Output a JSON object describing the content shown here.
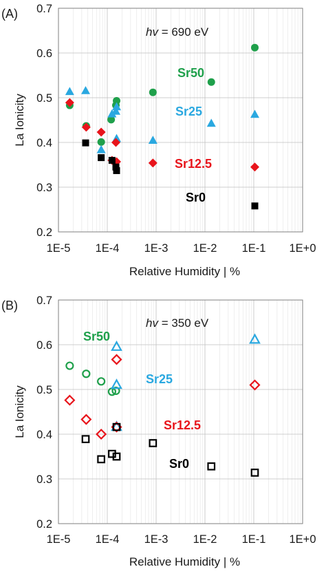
{
  "colors": {
    "Sr0": "#000000",
    "Sr12.5": "#e8141b",
    "Sr25": "#2aa8e0",
    "Sr50": "#1fa04b"
  },
  "chart_data": [
    {
      "type": "scatter",
      "panel": "(A)",
      "annotation": {
        "italic": "hv",
        "text": " = 690 eV"
      },
      "xlabel": "Relative Humidity | %",
      "ylabel": "La Ionicity",
      "xscale": "log",
      "xlim": [
        1e-05,
        1
      ],
      "ylim": [
        0.2,
        0.7
      ],
      "xticks": [
        "1E-5",
        "1E-4",
        "1E-3",
        "1E-2",
        "1E-1",
        "1E+0"
      ],
      "yticks": [
        "0.2",
        "0.3",
        "0.4",
        "0.5",
        "0.6",
        "0.7"
      ],
      "grid": true,
      "marker_fill": "filled",
      "series": [
        {
          "name": "Sr50",
          "marker": "circle",
          "points": [
            [
              1.7e-05,
              0.483
            ],
            [
              3.7e-05,
              0.437
            ],
            [
              7.5e-05,
              0.401
            ],
            [
              0.00012,
              0.451
            ],
            [
              0.00015,
              0.483
            ],
            [
              0.000155,
              0.493
            ],
            [
              0.00086,
              0.512
            ],
            [
              0.0135,
              0.535
            ],
            [
              0.105,
              0.612
            ]
          ]
        },
        {
          "name": "Sr25",
          "marker": "triangle",
          "points": [
            [
              1.7e-05,
              0.514
            ],
            [
              3.6e-05,
              0.516
            ],
            [
              7.5e-05,
              0.384
            ],
            [
              0.000125,
              0.464
            ],
            [
              0.00015,
              0.47
            ],
            [
              0.000155,
              0.48
            ],
            [
              0.000155,
              0.409
            ],
            [
              0.00086,
              0.405
            ],
            [
              0.0135,
              0.443
            ],
            [
              0.105,
              0.463
            ]
          ]
        },
        {
          "name": "Sr12.5",
          "marker": "diamond",
          "points": [
            [
              1.7e-05,
              0.489
            ],
            [
              3.7e-05,
              0.434
            ],
            [
              7.5e-05,
              0.423
            ],
            [
              0.000125,
              0.36
            ],
            [
              0.00015,
              0.4
            ],
            [
              0.000155,
              0.357
            ],
            [
              0.00086,
              0.354
            ],
            [
              0.105,
              0.345
            ]
          ]
        },
        {
          "name": "Sr0",
          "marker": "square",
          "points": [
            [
              3.6e-05,
              0.399
            ],
            [
              7.5e-05,
              0.366
            ],
            [
              0.000125,
              0.36
            ],
            [
              0.00015,
              0.345
            ],
            [
              0.000155,
              0.337
            ],
            [
              0.105,
              0.258
            ]
          ]
        }
      ],
      "labels": [
        {
          "series": "Sr50",
          "text": "Sr50"
        },
        {
          "series": "Sr25",
          "text": "Sr25"
        },
        {
          "series": "Sr12.5",
          "text": "Sr12.5"
        },
        {
          "series": "Sr0",
          "text": "Sr0"
        }
      ]
    },
    {
      "type": "scatter",
      "panel": "(B)",
      "annotation": {
        "italic": "hv",
        "text": " = 350 eV"
      },
      "xlabel": "Relative Humidity | %",
      "ylabel": "La Ionicity",
      "xscale": "log",
      "xlim": [
        1e-05,
        1
      ],
      "ylim": [
        0.2,
        0.7
      ],
      "xticks": [
        "1E-5",
        "1E-4",
        "1E-3",
        "1E-2",
        "1E-1",
        "1E+0"
      ],
      "yticks": [
        "0.2",
        "0.3",
        "0.4",
        "0.5",
        "0.6",
        "0.7"
      ],
      "grid": true,
      "marker_fill": "open",
      "series": [
        {
          "name": "Sr50",
          "marker": "circle",
          "points": [
            [
              1.7e-05,
              0.553
            ],
            [
              3.7e-05,
              0.535
            ],
            [
              7.5e-05,
              0.518
            ],
            [
              0.000125,
              0.495
            ],
            [
              0.00015,
              0.497
            ]
          ]
        },
        {
          "name": "Sr25",
          "marker": "triangle",
          "points": [
            [
              0.000155,
              0.596
            ],
            [
              0.000155,
              0.511
            ],
            [
              0.000155,
              0.417
            ],
            [
              0.105,
              0.612
            ]
          ]
        },
        {
          "name": "Sr12.5",
          "marker": "diamond",
          "points": [
            [
              1.7e-05,
              0.476
            ],
            [
              3.7e-05,
              0.433
            ],
            [
              7.5e-05,
              0.4
            ],
            [
              0.000155,
              0.567
            ],
            [
              0.000155,
              0.416
            ],
            [
              0.105,
              0.51
            ]
          ]
        },
        {
          "name": "Sr0",
          "marker": "square",
          "points": [
            [
              3.6e-05,
              0.389
            ],
            [
              7.5e-05,
              0.344
            ],
            [
              0.000125,
              0.356
            ],
            [
              0.000155,
              0.35
            ],
            [
              0.000155,
              0.416
            ],
            [
              0.00086,
              0.38
            ],
            [
              0.0135,
              0.328
            ],
            [
              0.105,
              0.314
            ]
          ]
        }
      ],
      "labels": [
        {
          "series": "Sr50",
          "text": "Sr50"
        },
        {
          "series": "Sr25",
          "text": "Sr25"
        },
        {
          "series": "Sr12.5",
          "text": "Sr12.5"
        },
        {
          "series": "Sr0",
          "text": "Sr0"
        }
      ]
    }
  ]
}
